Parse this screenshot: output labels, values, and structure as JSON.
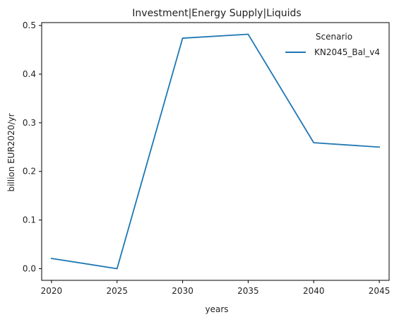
{
  "chart_data": {
    "type": "line",
    "title": "Investment|Energy Supply|Liquids",
    "xlabel": "years",
    "ylabel": "billion EUR2020/yr",
    "x": [
      2020,
      2025,
      2030,
      2035,
      2040,
      2045
    ],
    "x_ticks": [
      2020,
      2025,
      2030,
      2035,
      2040,
      2045
    ],
    "y_ticks": [
      0.0,
      0.1,
      0.2,
      0.3,
      0.4,
      0.5
    ],
    "y_tick_labels": [
      "0.0",
      "0.1",
      "0.2",
      "0.3",
      "0.4",
      "0.5"
    ],
    "xlim": [
      2019.25,
      2045.75
    ],
    "ylim": [
      -0.024,
      0.506
    ],
    "grid": false,
    "legend": {
      "title": "Scenario",
      "placement": "top-right"
    },
    "series": [
      {
        "name": "KN2045_Bal_v4",
        "color": "#1f77b4",
        "values": [
          0.021,
          0.0,
          0.474,
          0.482,
          0.259,
          0.25
        ]
      }
    ]
  }
}
